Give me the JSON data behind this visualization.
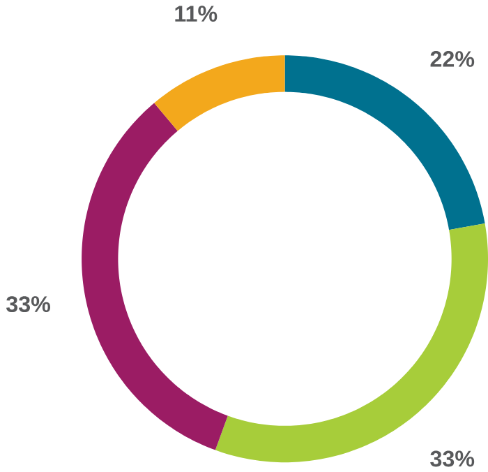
{
  "chart_data": {
    "type": "donut",
    "categories": [
      null,
      null,
      null,
      null
    ],
    "values": [
      22,
      33,
      33,
      11
    ],
    "colors": [
      "#00718f",
      "#a7cd3a",
      "#9b1c64",
      "#f3a81c"
    ],
    "value_labels": [
      "22%",
      "33%",
      "33%",
      "11%"
    ]
  }
}
